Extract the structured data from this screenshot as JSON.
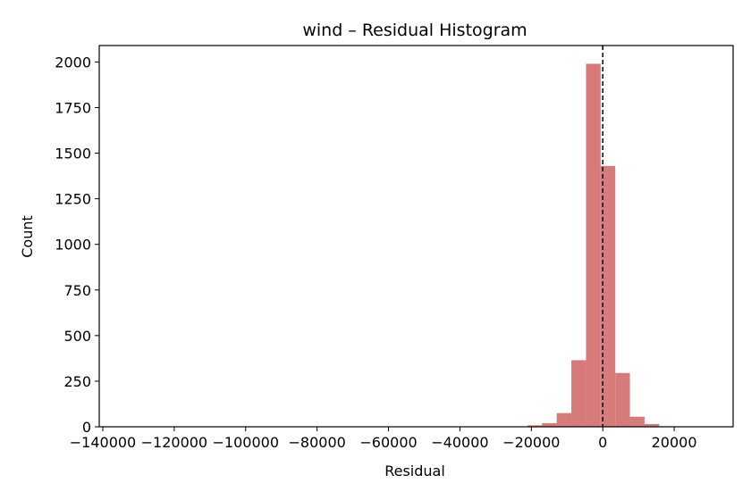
{
  "chart_data": {
    "type": "bar",
    "title": "wind – Residual Histogram",
    "xlabel": "Residual",
    "ylabel": "Count",
    "xlim": [
      -141000,
      36500
    ],
    "ylim": [
      0,
      2090
    ],
    "x_ticks": [
      -140000,
      -120000,
      -100000,
      -80000,
      -60000,
      -40000,
      -20000,
      0,
      20000
    ],
    "x_tick_labels": [
      "−140000",
      "−120000",
      "−100000",
      "−80000",
      "−60000",
      "−40000",
      "−20000",
      "0",
      "20000"
    ],
    "y_ticks": [
      0,
      250,
      500,
      750,
      1000,
      1250,
      1500,
      1750,
      2000
    ],
    "y_tick_labels": [
      "0",
      "250",
      "500",
      "750",
      "1000",
      "1250",
      "1500",
      "1750",
      "2000"
    ],
    "bin_width": 4100,
    "bins": [
      {
        "x0": -140000,
        "count": 0
      },
      {
        "x0": -135900,
        "count": 0
      },
      {
        "x0": -131800,
        "count": 0
      },
      {
        "x0": -127700,
        "count": 0
      },
      {
        "x0": -123600,
        "count": 0
      },
      {
        "x0": -119500,
        "count": 0
      },
      {
        "x0": -115400,
        "count": 0
      },
      {
        "x0": -111300,
        "count": 0
      },
      {
        "x0": -107200,
        "count": 0
      },
      {
        "x0": -103100,
        "count": 0
      },
      {
        "x0": -99000,
        "count": 0
      },
      {
        "x0": -94900,
        "count": 0
      },
      {
        "x0": -90800,
        "count": 0
      },
      {
        "x0": -86700,
        "count": 0
      },
      {
        "x0": -82600,
        "count": 0
      },
      {
        "x0": -78500,
        "count": 0
      },
      {
        "x0": -74400,
        "count": 0
      },
      {
        "x0": -70300,
        "count": 0
      },
      {
        "x0": -66200,
        "count": 0
      },
      {
        "x0": -62100,
        "count": 0
      },
      {
        "x0": -58000,
        "count": 0
      },
      {
        "x0": -53900,
        "count": 0
      },
      {
        "x0": -49800,
        "count": 0
      },
      {
        "x0": -45700,
        "count": 0
      },
      {
        "x0": -41600,
        "count": 0
      },
      {
        "x0": -37500,
        "count": 0
      },
      {
        "x0": -33400,
        "count": 0
      },
      {
        "x0": -29300,
        "count": 1
      },
      {
        "x0": -25200,
        "count": 2
      },
      {
        "x0": -21100,
        "count": 8
      },
      {
        "x0": -17000,
        "count": 20
      },
      {
        "x0": -12900,
        "count": 75
      },
      {
        "x0": -8800,
        "count": 365
      },
      {
        "x0": -4700,
        "count": 1990
      },
      {
        "x0": -600,
        "count": 1430
      },
      {
        "x0": 3500,
        "count": 295
      },
      {
        "x0": 7600,
        "count": 55
      },
      {
        "x0": 11700,
        "count": 15
      },
      {
        "x0": 15800,
        "count": 3
      },
      {
        "x0": 19900,
        "count": 1
      },
      {
        "x0": 24000,
        "count": 0
      },
      {
        "x0": 28100,
        "count": 0
      }
    ],
    "reference_line": {
      "x": 0,
      "style": "dashed"
    },
    "grid": false,
    "colors": {
      "bar": "#d67a7a",
      "reference_line": "#000000",
      "axis": "#000000"
    }
  }
}
